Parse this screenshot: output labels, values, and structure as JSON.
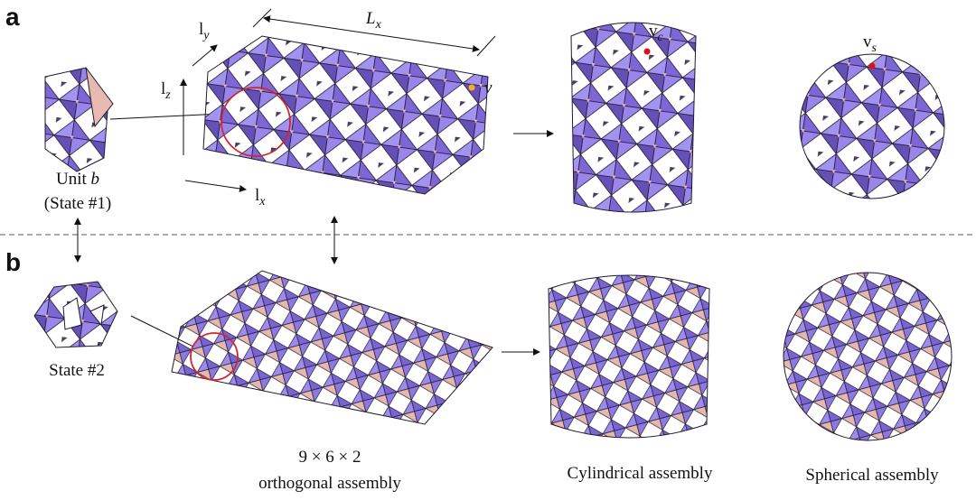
{
  "panels": {
    "a": "a",
    "b": "b"
  },
  "axes": {
    "ly": {
      "base": "l",
      "sub": "y"
    },
    "lz": {
      "base": "l",
      "sub": "z"
    },
    "lx": {
      "base": "l",
      "sub": "x"
    },
    "Lx": {
      "base": "L",
      "sub": "x"
    }
  },
  "vertices": {
    "v": "v",
    "vc": {
      "base": "v",
      "sub": "c"
    },
    "vs": {
      "base": "v",
      "sub": "s"
    }
  },
  "unit_a": {
    "name": "Unit",
    "symbol": "b",
    "state": "(State #1)"
  },
  "unit_b": {
    "state": "State #2"
  },
  "captions": {
    "size": "9 × 6 × 2",
    "orthogonal": "orthogonal assembly",
    "cylindrical": "Cylindrical assembly",
    "spherical": "Spherical assembly"
  }
}
